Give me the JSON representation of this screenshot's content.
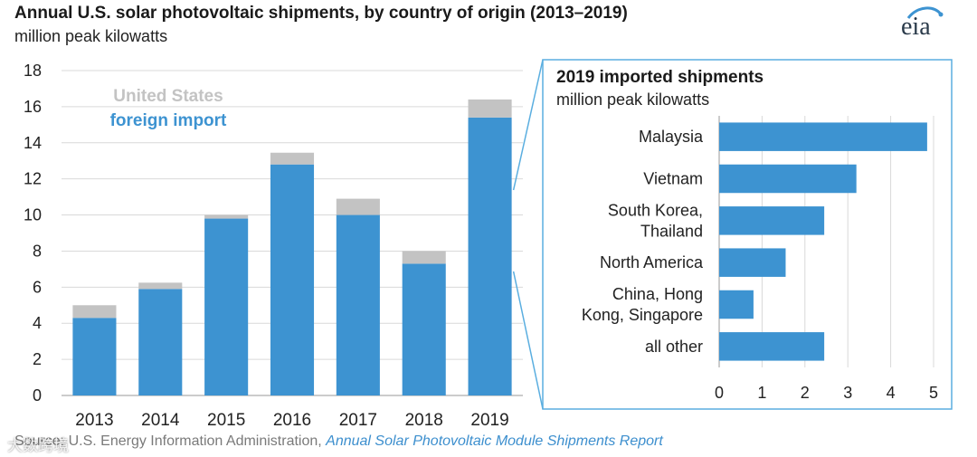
{
  "header": {
    "title": "Annual U.S. solar photovoltaic shipments, by country of origin (2013–2019)",
    "subtitle": "million peak kilowatts"
  },
  "logo": {
    "text": "eia"
  },
  "colors": {
    "us": "#c3c3c3",
    "foreign": "#3d93d1",
    "inset_bar": "#3d93d1",
    "inset_border": "#5aaee0",
    "grid": "#d9d9d9",
    "report_link": "#3d8fce"
  },
  "chart_data": [
    {
      "type": "bar",
      "stacked": true,
      "categories": [
        "2013",
        "2014",
        "2015",
        "2016",
        "2017",
        "2018",
        "2019"
      ],
      "series": [
        {
          "name": "foreign import",
          "values": [
            4.3,
            5.9,
            9.8,
            12.8,
            10.0,
            7.3,
            15.4
          ]
        },
        {
          "name": "United States",
          "values": [
            0.7,
            0.35,
            0.2,
            0.65,
            0.9,
            0.7,
            1.0
          ]
        }
      ],
      "ylim": [
        0,
        18
      ],
      "yticks": [
        "0",
        "2",
        "4",
        "6",
        "8",
        "10",
        "12",
        "14",
        "16",
        "18"
      ],
      "grid": true,
      "legend": [
        "United States",
        "foreign import"
      ]
    },
    {
      "type": "bar",
      "orientation": "horizontal",
      "title": "2019 imported shipments",
      "subtitle": "million peak kilowatts",
      "categories": [
        [
          "Malaysia"
        ],
        [
          "Vietnam"
        ],
        [
          "South Korea,",
          "Thailand"
        ],
        [
          "North America"
        ],
        [
          "China, Hong",
          "Kong, Singapore"
        ],
        [
          "all other"
        ]
      ],
      "values": [
        4.85,
        3.2,
        2.45,
        1.55,
        0.8,
        2.45
      ],
      "xlim": [
        0,
        5
      ],
      "xticks": [
        "0",
        "1",
        "2",
        "3",
        "4",
        "5"
      ],
      "grid": true
    }
  ],
  "source": {
    "label": "Source: U.S. Energy Information Administration, ",
    "report": "Annual Solar Photovoltaic Module Shipments Report"
  },
  "watermark": {
    "text": "大数跨境"
  }
}
